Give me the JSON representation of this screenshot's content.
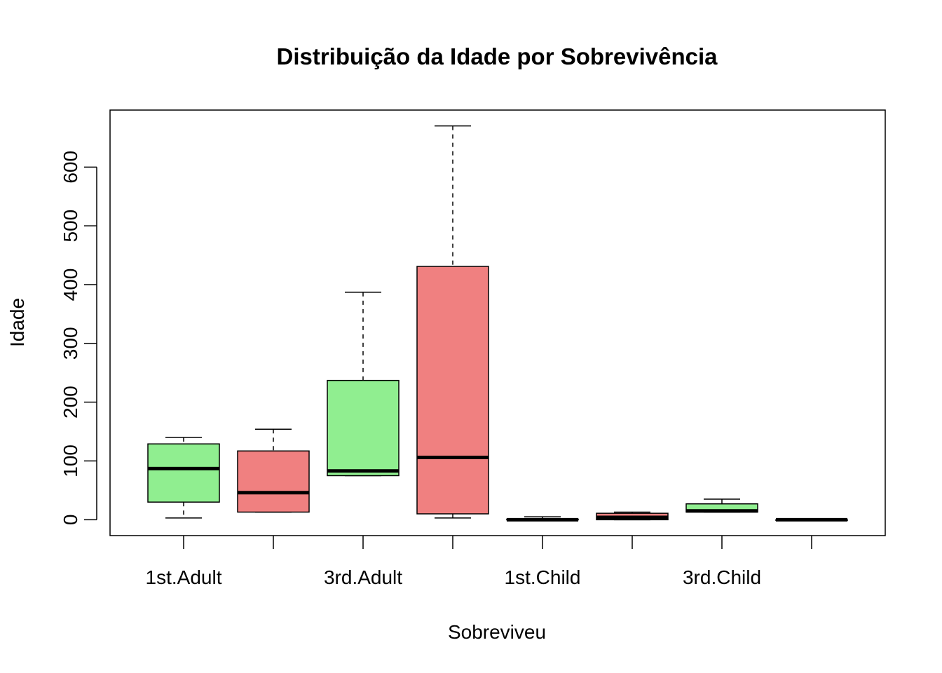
{
  "chart_data": {
    "type": "boxplot",
    "title": "Distribuição da Idade por Sobrevivência",
    "xlabel": "Sobreviveu",
    "ylabel": "Idade",
    "ylim": [
      -27,
      697
    ],
    "yticks": [
      0,
      100,
      200,
      300,
      400,
      500,
      600
    ],
    "categories": [
      "1st.Adult",
      "",
      "3rd.Adult",
      "",
      "1st.Child",
      "",
      "3rd.Child",
      ""
    ],
    "fill_colors": [
      "#90EE90",
      "#F08080"
    ],
    "grid": false,
    "boxes": [
      {
        "category": "1st.Adult",
        "min": 3,
        "q1": 30,
        "median": 87,
        "q3": 129,
        "max": 140
      },
      {
        "category": "",
        "min": 13,
        "q1": 13,
        "median": 46,
        "q3": 117,
        "max": 154
      },
      {
        "category": "3rd.Adult",
        "min": 75,
        "q1": 75,
        "median": 83,
        "q3": 237,
        "max": 387
      },
      {
        "category": "",
        "min": 3,
        "q1": 10,
        "median": 106,
        "q3": 431,
        "max": 670
      },
      {
        "category": "1st.Child",
        "min": 0,
        "q1": 0,
        "median": 0,
        "q3": 1,
        "max": 5
      },
      {
        "category": "",
        "min": 0,
        "q1": 0,
        "median": 4,
        "q3": 11,
        "max": 13
      },
      {
        "category": "3rd.Child",
        "min": 13,
        "q1": 13,
        "median": 15,
        "q3": 27,
        "max": 35
      },
      {
        "category": "",
        "min": 0,
        "q1": 0,
        "median": 0,
        "q3": 0,
        "max": 0
      }
    ]
  }
}
